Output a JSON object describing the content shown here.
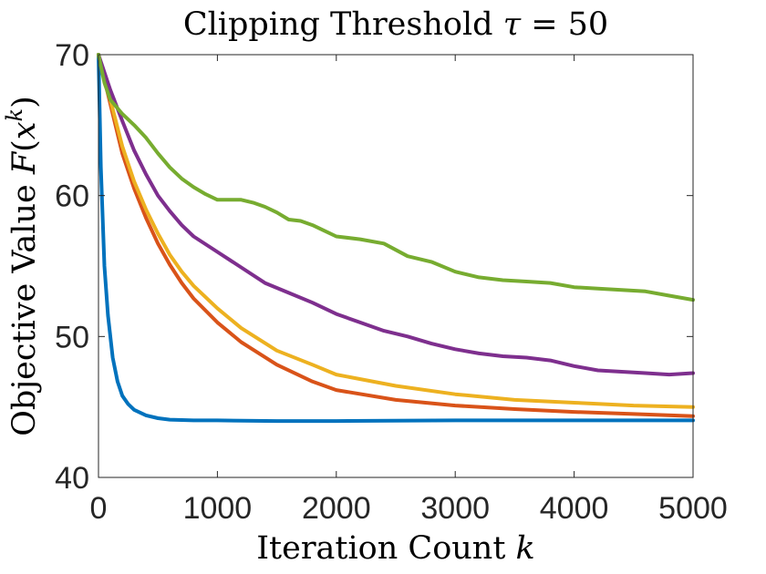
{
  "chart_data": {
    "type": "line",
    "title": "Clipping Threshold τ = 50",
    "xlabel": "Iteration Count k",
    "ylabel": "Objective Value F(x^k)",
    "xlim": [
      0,
      5000
    ],
    "ylim": [
      40,
      70
    ],
    "xticks": [
      0,
      1000,
      2000,
      3000,
      4000,
      5000
    ],
    "yticks": [
      40,
      50,
      60,
      70
    ],
    "xtick_labels": [
      "0",
      "1000",
      "2000",
      "3000",
      "4000",
      "5000"
    ],
    "ytick_labels": [
      "40",
      "50",
      "60",
      "70"
    ],
    "grid": false,
    "series": [
      {
        "name": "blue",
        "color": "#0072BD",
        "x": [
          0,
          20,
          50,
          80,
          120,
          160,
          200,
          250,
          300,
          400,
          500,
          600,
          800,
          1000,
          1500,
          2000,
          3000,
          4000,
          5000
        ],
        "values": [
          70,
          62,
          55,
          51.5,
          48.5,
          46.8,
          45.8,
          45.2,
          44.8,
          44.4,
          44.2,
          44.1,
          44.05,
          44.05,
          44.0,
          44.0,
          44.05,
          44.05,
          44.05
        ]
      },
      {
        "name": "orange",
        "color": "#D95319",
        "x": [
          0,
          100,
          200,
          300,
          400,
          500,
          600,
          700,
          800,
          1000,
          1200,
          1500,
          1800,
          2000,
          2500,
          3000,
          3500,
          4000,
          4500,
          5000
        ],
        "values": [
          70,
          66.5,
          63,
          60.5,
          58.4,
          56.6,
          55.1,
          53.8,
          52.7,
          51.0,
          49.6,
          48.0,
          46.8,
          46.2,
          45.5,
          45.1,
          44.85,
          44.65,
          44.5,
          44.35
        ]
      },
      {
        "name": "yellow",
        "color": "#EDB120",
        "x": [
          0,
          100,
          200,
          300,
          400,
          500,
          600,
          700,
          800,
          1000,
          1200,
          1500,
          1800,
          2000,
          2500,
          3000,
          3500,
          4000,
          4500,
          5000
        ],
        "values": [
          70,
          66.8,
          63.5,
          61.0,
          59.0,
          57.3,
          55.8,
          54.6,
          53.6,
          52.0,
          50.6,
          49.0,
          48.0,
          47.3,
          46.5,
          45.9,
          45.5,
          45.3,
          45.1,
          45.0
        ]
      },
      {
        "name": "purple",
        "color": "#7E2F8E",
        "x": [
          0,
          100,
          200,
          300,
          400,
          500,
          600,
          700,
          800,
          1000,
          1200,
          1400,
          1600,
          1800,
          2000,
          2200,
          2400,
          2600,
          2800,
          3000,
          3200,
          3400,
          3600,
          3800,
          4000,
          4200,
          4400,
          4600,
          4800,
          5000
        ],
        "values": [
          70,
          67.5,
          65.3,
          63.2,
          61.5,
          60.0,
          58.9,
          57.9,
          57.1,
          56.0,
          54.9,
          53.8,
          53.1,
          52.4,
          51.6,
          51.0,
          50.4,
          50.0,
          49.5,
          49.1,
          48.8,
          48.6,
          48.5,
          48.3,
          47.9,
          47.6,
          47.5,
          47.4,
          47.3,
          47.4
        ]
      },
      {
        "name": "green",
        "color": "#77AC30",
        "x": [
          0,
          50,
          100,
          200,
          300,
          400,
          500,
          600,
          700,
          800,
          900,
          1000,
          1100,
          1200,
          1300,
          1400,
          1500,
          1600,
          1700,
          1800,
          2000,
          2200,
          2400,
          2600,
          2800,
          3000,
          3200,
          3400,
          3600,
          3800,
          4000,
          4200,
          4400,
          4600,
          4800,
          5000
        ],
        "values": [
          70,
          68,
          66.8,
          65.8,
          65.0,
          64.1,
          63.0,
          62.0,
          61.2,
          60.6,
          60.1,
          59.7,
          59.7,
          59.7,
          59.5,
          59.2,
          58.8,
          58.3,
          58.2,
          57.9,
          57.1,
          56.9,
          56.6,
          55.7,
          55.3,
          54.6,
          54.2,
          54.0,
          53.9,
          53.8,
          53.5,
          53.4,
          53.3,
          53.2,
          52.9,
          52.6
        ]
      }
    ]
  }
}
